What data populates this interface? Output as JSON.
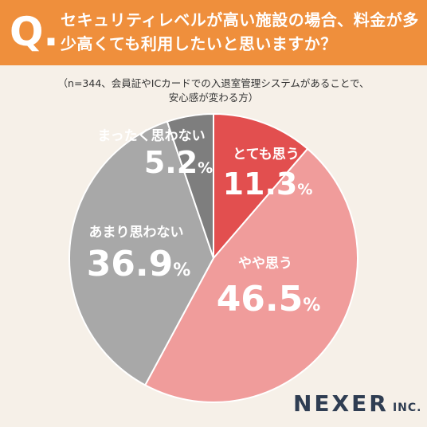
{
  "header": {
    "q_mark": "Q.",
    "question": "セキュリティレベルが高い施設の場合、料金が多少高くても利用したいと思いますか？"
  },
  "note": {
    "line1": "（n=344、会員証やICカードでの入退室管理システムがあることで、",
    "line2": "安心感が変わる方）"
  },
  "brand": {
    "name": "NEXER",
    "suffix": "INC."
  },
  "colors": {
    "header_bg": "#ef8f3c",
    "page_bg": "#f6f0e8",
    "slice_1": "#e24f4f",
    "slice_2": "#f09c9b",
    "slice_3": "#a8a8a8",
    "slice_4": "#7e7e7e",
    "brand_text": "#2f3d52"
  },
  "chart_data": {
    "type": "pie",
    "title": "",
    "unit": "%",
    "start_angle_deg": 0,
    "direction": "clockwise",
    "slices": [
      {
        "label": "とても思う",
        "value": 11.3,
        "display": "11.3",
        "color": "#e24f4f"
      },
      {
        "label": "やや思う",
        "value": 46.5,
        "display": "46.5",
        "color": "#f09c9b"
      },
      {
        "label": "あまり思わない",
        "value": 36.9,
        "display": "36.9",
        "color": "#a8a8a8"
      },
      {
        "label": "まったく思わない",
        "value": 5.2,
        "display": "5.2",
        "color": "#7e7e7e"
      }
    ]
  }
}
